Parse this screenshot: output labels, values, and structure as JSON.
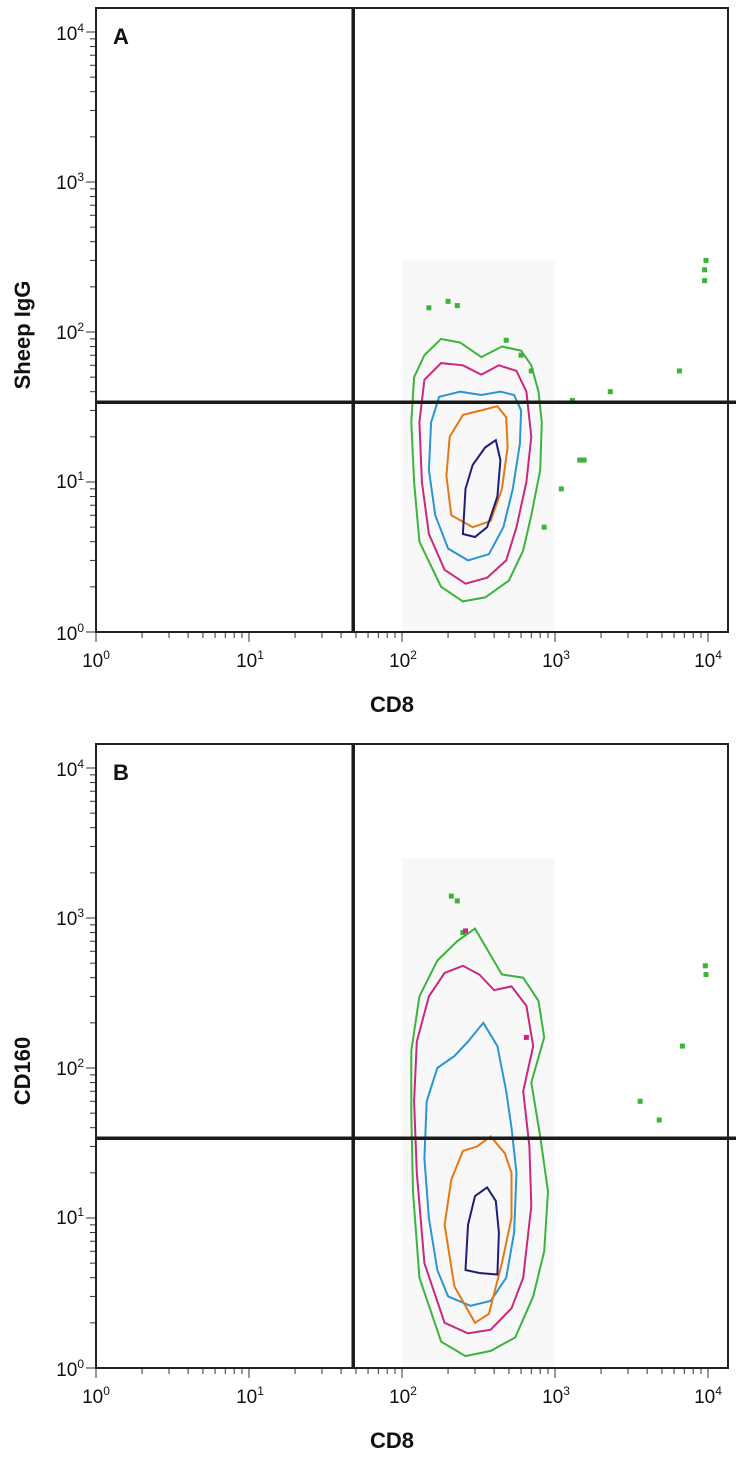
{
  "chart_data": [
    {
      "type": "contour",
      "panel_label": "A",
      "xlabel": "CD8",
      "ylabel": "Sheep IgG",
      "x_scale": "log",
      "y_scale": "log",
      "xlim": [
        1,
        10000
      ],
      "ylim": [
        1,
        10000
      ],
      "x_ticks": [
        {
          "base": "10",
          "exp": "0"
        },
        {
          "base": "10",
          "exp": "1"
        },
        {
          "base": "10",
          "exp": "2"
        },
        {
          "base": "10",
          "exp": "3"
        },
        {
          "base": "10",
          "exp": "4"
        }
      ],
      "y_ticks": [
        {
          "base": "10",
          "exp": "0"
        },
        {
          "base": "10",
          "exp": "1"
        },
        {
          "base": "10",
          "exp": "2"
        },
        {
          "base": "10",
          "exp": "3"
        },
        {
          "base": "10",
          "exp": "4"
        }
      ],
      "quadrant_gate": {
        "x": 48,
        "y": 34
      },
      "contour_colors": [
        "#3cb43c",
        "#c8287d",
        "#2896d2",
        "#e67814",
        "#1e1e78"
      ],
      "contour_levels": [
        {
          "color": "#3cb43c",
          "points": [
            [
              180,
              2
            ],
            [
              250,
              1.6
            ],
            [
              350,
              1.7
            ],
            [
              500,
              2.2
            ],
            [
              620,
              3.5
            ],
            [
              700,
              6
            ],
            [
              800,
              12
            ],
            [
              820,
              25
            ],
            [
              780,
              40
            ],
            [
              700,
              60
            ],
            [
              600,
              75
            ],
            [
              450,
              80
            ],
            [
              330,
              68
            ],
            [
              240,
              85
            ],
            [
              180,
              90
            ],
            [
              140,
              70
            ],
            [
              120,
              50
            ],
            [
              115,
              25
            ],
            [
              120,
              10
            ],
            [
              130,
              4
            ]
          ]
        },
        {
          "color": "#c8287d",
          "points": [
            [
              190,
              2.6
            ],
            [
              260,
              2.1
            ],
            [
              360,
              2.3
            ],
            [
              480,
              3
            ],
            [
              560,
              5
            ],
            [
              650,
              10
            ],
            [
              700,
              20
            ],
            [
              650,
              40
            ],
            [
              560,
              55
            ],
            [
              430,
              60
            ],
            [
              330,
              52
            ],
            [
              250,
              60
            ],
            [
              180,
              62
            ],
            [
              140,
              48
            ],
            [
              130,
              25
            ],
            [
              135,
              10
            ],
            [
              150,
              4.5
            ]
          ]
        },
        {
          "color": "#2896d2",
          "points": [
            [
              200,
              3.6
            ],
            [
              270,
              3
            ],
            [
              370,
              3.3
            ],
            [
              460,
              5
            ],
            [
              530,
              9
            ],
            [
              590,
              18
            ],
            [
              600,
              30
            ],
            [
              540,
              38
            ],
            [
              440,
              40
            ],
            [
              330,
              38
            ],
            [
              240,
              40
            ],
            [
              175,
              37
            ],
            [
              155,
              25
            ],
            [
              150,
              12
            ],
            [
              165,
              6
            ]
          ]
        },
        {
          "color": "#e67814",
          "points": [
            [
              210,
              6
            ],
            [
              290,
              5
            ],
            [
              380,
              5.5
            ],
            [
              450,
              9
            ],
            [
              490,
              17
            ],
            [
              480,
              27
            ],
            [
              420,
              32
            ],
            [
              330,
              30
            ],
            [
              250,
              28
            ],
            [
              205,
              20
            ],
            [
              195,
              11
            ]
          ]
        },
        {
          "color": "#1e1e78",
          "points": [
            [
              250,
              4.5
            ],
            [
              300,
              4.3
            ],
            [
              360,
              5
            ],
            [
              420,
              8
            ],
            [
              440,
              14
            ],
            [
              410,
              19
            ],
            [
              350,
              17
            ],
            [
              290,
              13
            ],
            [
              260,
              9
            ]
          ]
        }
      ],
      "outlier_points": [
        [
          200,
          160,
          "#3cb43c"
        ],
        [
          230,
          150,
          "#3cb43c"
        ],
        [
          480,
          88,
          "#3cb43c"
        ],
        [
          600,
          70,
          "#3cb43c"
        ],
        [
          700,
          55,
          "#3cb43c"
        ],
        [
          1300,
          35,
          "#3cb43c"
        ],
        [
          1450,
          14,
          "#3cb43c"
        ],
        [
          1550,
          14,
          "#3cb43c"
        ],
        [
          1100,
          9,
          "#3cb43c"
        ],
        [
          850,
          5,
          "#3cb43c"
        ],
        [
          2300,
          40,
          "#3cb43c"
        ],
        [
          6500,
          55,
          "#3cb43c"
        ],
        [
          9500,
          260,
          "#3cb43c"
        ],
        [
          9500,
          220,
          "#3cb43c"
        ],
        [
          9700,
          300,
          "#3cb43c"
        ],
        [
          150,
          145,
          "#3cb43c"
        ]
      ]
    },
    {
      "type": "contour",
      "panel_label": "B",
      "xlabel": "CD8",
      "ylabel": "CD160",
      "x_scale": "log",
      "y_scale": "log",
      "xlim": [
        1,
        10000
      ],
      "ylim": [
        1,
        10000
      ],
      "x_ticks": [
        {
          "base": "10",
          "exp": "0"
        },
        {
          "base": "10",
          "exp": "1"
        },
        {
          "base": "10",
          "exp": "2"
        },
        {
          "base": "10",
          "exp": "3"
        },
        {
          "base": "10",
          "exp": "4"
        }
      ],
      "y_ticks": [
        {
          "base": "10",
          "exp": "0"
        },
        {
          "base": "10",
          "exp": "1"
        },
        {
          "base": "10",
          "exp": "2"
        },
        {
          "base": "10",
          "exp": "3"
        },
        {
          "base": "10",
          "exp": "4"
        }
      ],
      "quadrant_gate": {
        "x": 48,
        "y": 34
      },
      "contour_colors": [
        "#3cb43c",
        "#c8287d",
        "#2896d2",
        "#e67814",
        "#1e1e78"
      ],
      "contour_levels": [
        {
          "color": "#3cb43c",
          "points": [
            [
              180,
              1.5
            ],
            [
              260,
              1.2
            ],
            [
              380,
              1.3
            ],
            [
              550,
              1.6
            ],
            [
              720,
              3
            ],
            [
              850,
              6
            ],
            [
              900,
              15
            ],
            [
              800,
              35
            ],
            [
              700,
              80
            ],
            [
              850,
              160
            ],
            [
              780,
              280
            ],
            [
              620,
              400
            ],
            [
              450,
              420
            ],
            [
              300,
              850
            ],
            [
              230,
              700
            ],
            [
              170,
              520
            ],
            [
              130,
              300
            ],
            [
              115,
              130
            ],
            [
              115,
              50
            ],
            [
              118,
              15
            ],
            [
              130,
              4
            ]
          ]
        },
        {
          "color": "#c8287d",
          "points": [
            [
              190,
              2
            ],
            [
              270,
              1.7
            ],
            [
              380,
              1.8
            ],
            [
              520,
              2.5
            ],
            [
              620,
              4
            ],
            [
              700,
              12
            ],
            [
              680,
              30
            ],
            [
              620,
              70
            ],
            [
              720,
              140
            ],
            [
              650,
              260
            ],
            [
              520,
              350
            ],
            [
              400,
              330
            ],
            [
              320,
              420
            ],
            [
              250,
              480
            ],
            [
              190,
              430
            ],
            [
              150,
              300
            ],
            [
              125,
              150
            ],
            [
              120,
              60
            ],
            [
              125,
              20
            ],
            [
              140,
              5
            ]
          ]
        },
        {
          "color": "#2896d2",
          "points": [
            [
              200,
              3
            ],
            [
              280,
              2.6
            ],
            [
              380,
              2.8
            ],
            [
              480,
              4
            ],
            [
              540,
              8
            ],
            [
              560,
              20
            ],
            [
              520,
              40
            ],
            [
              480,
              70
            ],
            [
              420,
              140
            ],
            [
              340,
              200
            ],
            [
              270,
              150
            ],
            [
              220,
              120
            ],
            [
              170,
              100
            ],
            [
              145,
              60
            ],
            [
              140,
              25
            ],
            [
              150,
              10
            ],
            [
              170,
              4.5
            ]
          ]
        },
        {
          "color": "#e67814",
          "points": [
            [
              220,
              3.5
            ],
            [
              300,
              2
            ],
            [
              370,
              2.3
            ],
            [
              450,
              5
            ],
            [
              520,
              10
            ],
            [
              520,
              20
            ],
            [
              470,
              27
            ],
            [
              380,
              35
            ],
            [
              310,
              30
            ],
            [
              250,
              28
            ],
            [
              210,
              18
            ],
            [
              190,
              9
            ]
          ]
        },
        {
          "color": "#1e1e78",
          "points": [
            [
              260,
              4.5
            ],
            [
              320,
              4.3
            ],
            [
              420,
              4.2
            ],
            [
              430,
              8
            ],
            [
              410,
              13
            ],
            [
              360,
              16
            ],
            [
              300,
              14
            ],
            [
              270,
              9
            ]
          ]
        }
      ],
      "outlier_points": [
        [
          210,
          1400,
          "#3cb43c"
        ],
        [
          230,
          1300,
          "#3cb43c"
        ],
        [
          250,
          800,
          "#3cb43c"
        ],
        [
          3600,
          60,
          "#3cb43c"
        ],
        [
          4800,
          45,
          "#3cb43c"
        ],
        [
          6800,
          140,
          "#3cb43c"
        ],
        [
          9600,
          480,
          "#3cb43c"
        ],
        [
          9700,
          420,
          "#3cb43c"
        ],
        [
          650,
          160,
          "#c8287d"
        ],
        [
          260,
          820,
          "#c8287d"
        ]
      ]
    }
  ]
}
